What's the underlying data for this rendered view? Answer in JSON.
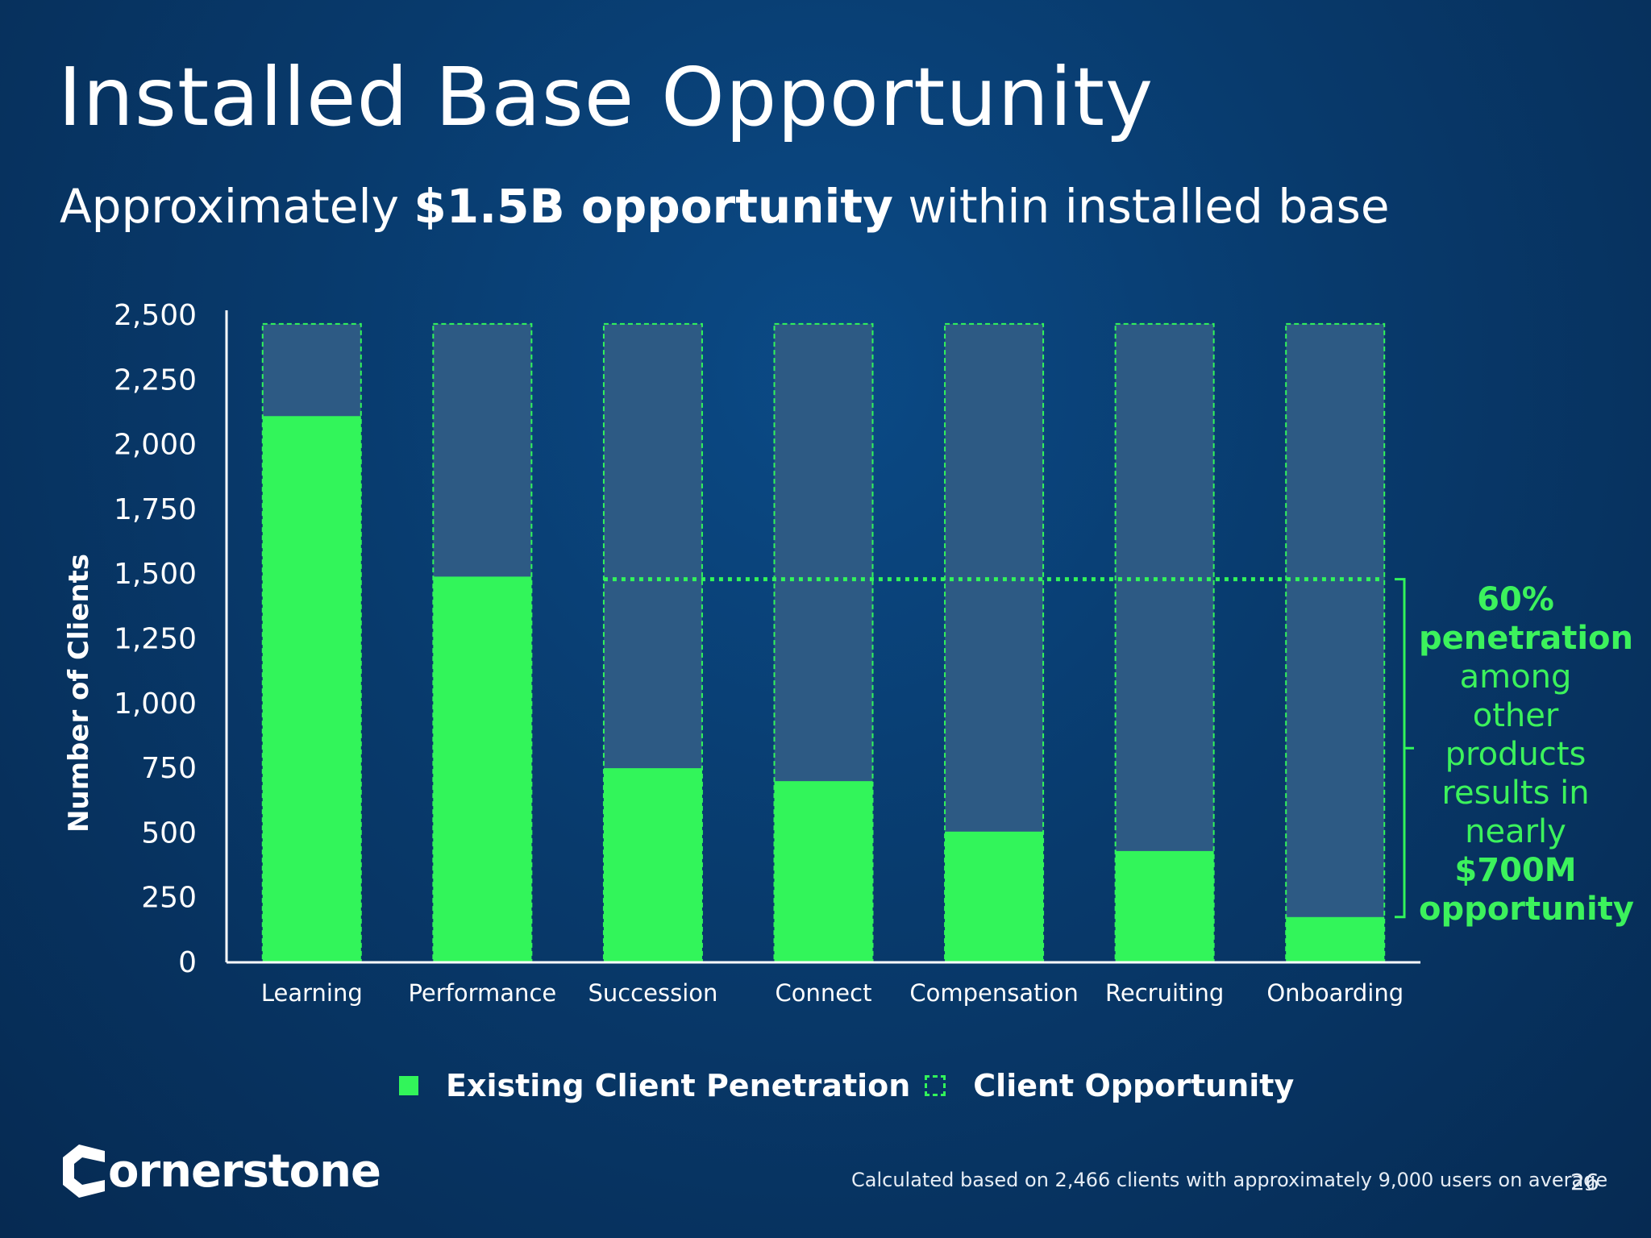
{
  "slide": {
    "title": "Installed Base Opportunity",
    "subtitle_prefix": "Approximately ",
    "subtitle_bold": "$1.5B opportunity",
    "subtitle_suffix": " within installed base",
    "page_number": "26",
    "footnote": "Calculated based on 2,466 clients with approximately 9,000 users on average"
  },
  "logo": {
    "text": "ornerstone",
    "icon": "cornerstone-c-icon"
  },
  "callout": {
    "line1": "60%",
    "line2": "penetration",
    "line3": "among",
    "line4": "other",
    "line5": "products",
    "line6": "results in",
    "line7": "nearly",
    "line8": "$700M",
    "line9": "opportunity"
  },
  "legend": {
    "existing": "Existing Client Penetration",
    "opportunity": "Client Opportunity"
  },
  "colors": {
    "existing": "#32f55a",
    "opportunity_fill": "#2d5a84",
    "opportunity_border": "#32f55a",
    "callout_text": "#3cf25c",
    "axis": "#ffffff"
  },
  "chart_data": {
    "type": "bar",
    "categories": [
      "Learning",
      "Performance",
      "Succession",
      "Connect",
      "Compensation",
      "Recruiting",
      "Onboarding"
    ],
    "series": [
      {
        "name": "Existing Client Penetration",
        "values": [
          2110,
          1490,
          750,
          700,
          505,
          430,
          175
        ]
      },
      {
        "name": "Client Opportunity",
        "values": [
          2466,
          2466,
          2466,
          2466,
          2466,
          2466,
          2466
        ]
      }
    ],
    "ylabel": "Number of Clients",
    "ylim": [
      0,
      2500
    ],
    "yticks": [
      0,
      250,
      500,
      750,
      1000,
      1250,
      1500,
      1750,
      2000,
      2250,
      2500
    ],
    "ytick_labels": [
      "0",
      "250",
      "500",
      "750",
      "1,000",
      "1,250",
      "1,500",
      "1,750",
      "2,000",
      "2,250",
      "2,500"
    ],
    "reference_line": 1480,
    "grid": false,
    "legend_position": "bottom"
  }
}
